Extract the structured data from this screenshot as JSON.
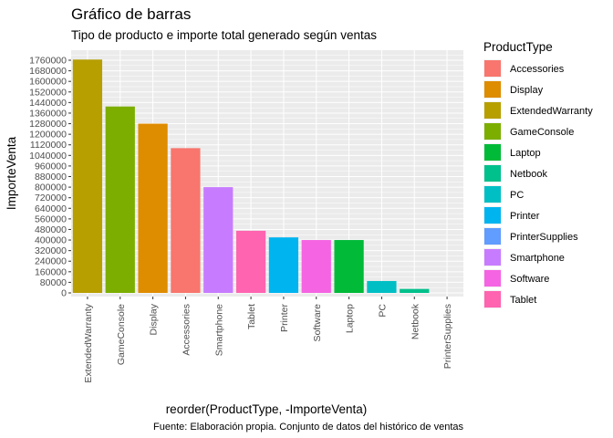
{
  "chart_data": {
    "type": "bar",
    "title": "Gráfico de barras",
    "subtitle": "Tipo de producto e importe total generado según ventas",
    "caption": "Fuente: Elaboración propia. Conjunto de datos del histórico de ventas",
    "xlabel": "reorder(ProductType, -ImporteVenta)",
    "ylabel": "ImporteVenta",
    "ylim": [
      0,
      1800000
    ],
    "y_ticks": [
      0,
      80000,
      160000,
      240000,
      320000,
      400000,
      480000,
      560000,
      640000,
      720000,
      800000,
      880000,
      960000,
      1040000,
      1120000,
      1200000,
      1280000,
      1360000,
      1440000,
      1520000,
      1600000,
      1680000,
      1760000
    ],
    "categories": [
      "ExtendedWarranty",
      "GameConsole",
      "Display",
      "Accessories",
      "Smartphone",
      "Tablet",
      "Printer",
      "Software",
      "Laptop",
      "PC",
      "Netbook",
      "PrinterSupplies"
    ],
    "values": [
      1765000,
      1410000,
      1280000,
      1095000,
      800000,
      470000,
      420000,
      400000,
      400000,
      90000,
      30000,
      0
    ],
    "grid": true,
    "legend": {
      "title": "ProductType",
      "position": "right",
      "entries": [
        {
          "name": "Accessories",
          "color": "#F8766D"
        },
        {
          "name": "Display",
          "color": "#DE8C00"
        },
        {
          "name": "ExtendedWarranty",
          "color": "#B79F00"
        },
        {
          "name": "GameConsole",
          "color": "#7CAE00"
        },
        {
          "name": "Laptop",
          "color": "#00BA38"
        },
        {
          "name": "Netbook",
          "color": "#00C08B"
        },
        {
          "name": "PC",
          "color": "#00BFC4"
        },
        {
          "name": "Printer",
          "color": "#00B4F0"
        },
        {
          "name": "PrinterSupplies",
          "color": "#619CFF"
        },
        {
          "name": "Smartphone",
          "color": "#C77CFF"
        },
        {
          "name": "Software",
          "color": "#F564E3"
        },
        {
          "name": "Tablet",
          "color": "#FF64B0"
        }
      ]
    },
    "panel_background": "#EBEBEB"
  }
}
